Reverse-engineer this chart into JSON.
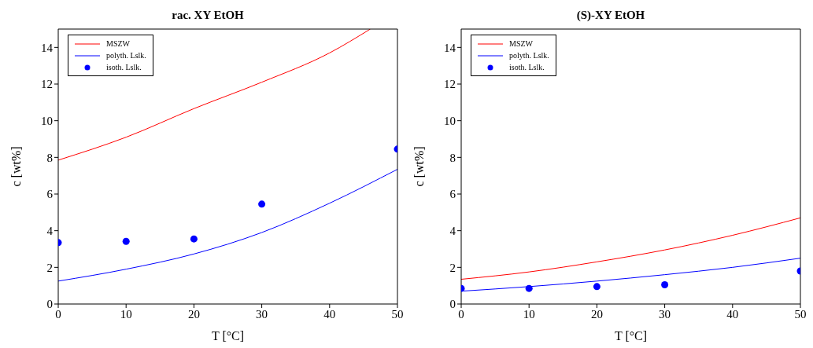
{
  "chart_data": [
    {
      "type": "line",
      "title": "rac. XY EtOH",
      "xlabel": "T [°C]",
      "ylabel": "c [wt%]",
      "xlim": [
        0,
        50
      ],
      "ylim": [
        0,
        15
      ],
      "xticks": [
        0,
        10,
        20,
        30,
        40,
        50
      ],
      "yticks": [
        0,
        2,
        4,
        6,
        8,
        10,
        12,
        14
      ],
      "grid": false,
      "legend": "top left",
      "series": [
        {
          "name": "MSZW",
          "color": "#ff0000",
          "marker": "none",
          "x": [
            0,
            10,
            20,
            30,
            40,
            46
          ],
          "values": [
            7.85,
            9.1,
            10.66,
            12.1,
            13.7,
            15
          ]
        },
        {
          "name": "polyth. Lslk.",
          "color": "#0000ff",
          "marker": "none",
          "x": [
            0,
            10,
            20,
            30,
            40,
            50
          ],
          "values": [
            1.25,
            1.9,
            2.73,
            3.9,
            5.5,
            7.35
          ]
        },
        {
          "name": "isoth. Lslk.",
          "type": "scatter",
          "color": "#0000ff",
          "marker": "circle",
          "x": [
            0,
            10,
            20,
            30,
            50
          ],
          "values": [
            3.35,
            3.42,
            3.55,
            5.45,
            8.45
          ]
        }
      ]
    },
    {
      "type": "line",
      "title": "(S)-XY EtOH",
      "xlabel": "T [°C]",
      "ylabel": "c [wt%]",
      "xlim": [
        0,
        50
      ],
      "ylim": [
        0,
        15
      ],
      "xticks": [
        0,
        10,
        20,
        30,
        40,
        50
      ],
      "yticks": [
        0,
        2,
        4,
        6,
        8,
        10,
        12,
        14
      ],
      "grid": false,
      "legend": "top left",
      "series": [
        {
          "name": "MSZW",
          "color": "#ff0000",
          "marker": "none",
          "x": [
            0,
            10,
            20,
            30,
            40,
            50
          ],
          "values": [
            1.35,
            1.75,
            2.3,
            2.95,
            3.75,
            4.7
          ]
        },
        {
          "name": "polyth. Lslk.",
          "color": "#0000ff",
          "marker": "none",
          "x": [
            0,
            10,
            20,
            30,
            40,
            50
          ],
          "values": [
            0.7,
            0.95,
            1.25,
            1.6,
            2.0,
            2.5
          ]
        },
        {
          "name": "isoth. Lslk.",
          "type": "scatter",
          "color": "#0000ff",
          "marker": "circle",
          "x": [
            0,
            10,
            20,
            30,
            50
          ],
          "values": [
            0.85,
            0.85,
            0.95,
            1.05,
            1.8
          ]
        }
      ]
    }
  ]
}
